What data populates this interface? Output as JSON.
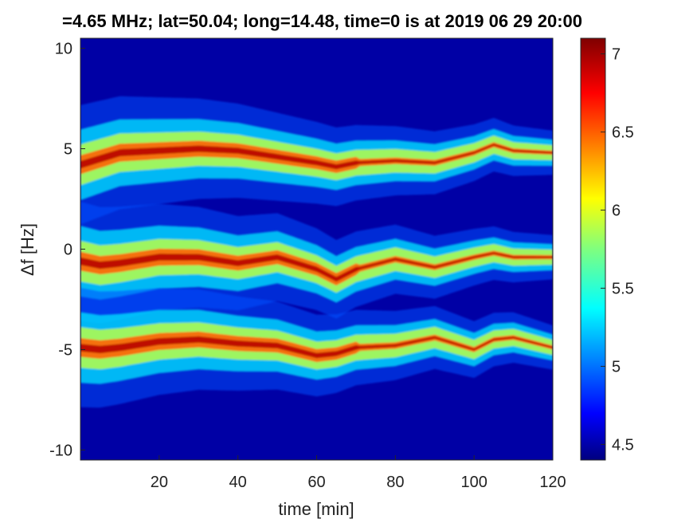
{
  "chart_data": {
    "type": "heatmap",
    "title": "=4.65 MHz;  lat=50.04; long=14.48, time=0 is at 2019 06 29 20:00",
    "xlabel": "time [min]",
    "ylabel": "Δf [Hz]",
    "xlim": [
      0,
      120
    ],
    "ylim": [
      -10.5,
      10.5
    ],
    "x_ticks": [
      20,
      40,
      60,
      80,
      100,
      120
    ],
    "y_ticks": [
      -10,
      -5,
      0,
      5,
      10
    ],
    "colorbar": {
      "colormap": "jet",
      "range": [
        4.4,
        7.1
      ],
      "ticks": [
        4.5,
        5,
        5.5,
        6,
        6.5,
        7
      ]
    },
    "traces": [
      {
        "center_hz": [
          [
            0,
            4.2
          ],
          [
            5,
            4.5
          ],
          [
            10,
            4.8
          ],
          [
            20,
            4.9
          ],
          [
            30,
            5.0
          ],
          [
            40,
            4.9
          ],
          [
            50,
            4.6
          ],
          [
            60,
            4.3
          ],
          [
            65,
            4.1
          ],
          [
            70,
            4.3
          ],
          [
            80,
            4.4
          ],
          [
            90,
            4.3
          ],
          [
            100,
            4.8
          ],
          [
            105,
            5.2
          ],
          [
            110,
            4.9
          ],
          [
            120,
            4.8
          ]
        ]
      },
      {
        "center_hz": [
          [
            0,
            -0.6
          ],
          [
            5,
            -0.8
          ],
          [
            10,
            -0.7
          ],
          [
            20,
            -0.4
          ],
          [
            30,
            -0.4
          ],
          [
            40,
            -0.7
          ],
          [
            50,
            -0.4
          ],
          [
            60,
            -1.0
          ],
          [
            65,
            -1.5
          ],
          [
            70,
            -1.0
          ],
          [
            80,
            -0.5
          ],
          [
            90,
            -0.9
          ],
          [
            100,
            -0.4
          ],
          [
            105,
            -0.2
          ],
          [
            110,
            -0.4
          ],
          [
            120,
            -0.4
          ]
        ]
      },
      {
        "center_hz": [
          [
            0,
            -4.9
          ],
          [
            5,
            -5.0
          ],
          [
            10,
            -4.9
          ],
          [
            20,
            -4.6
          ],
          [
            30,
            -4.5
          ],
          [
            40,
            -4.7
          ],
          [
            50,
            -4.8
          ],
          [
            60,
            -5.3
          ],
          [
            65,
            -5.2
          ],
          [
            70,
            -4.9
          ],
          [
            80,
            -4.8
          ],
          [
            90,
            -4.4
          ],
          [
            100,
            -5.0
          ],
          [
            105,
            -4.5
          ],
          [
            110,
            -4.4
          ],
          [
            120,
            -4.9
          ]
        ]
      }
    ],
    "background_level": 4.5,
    "peak_level": 7.1
  }
}
